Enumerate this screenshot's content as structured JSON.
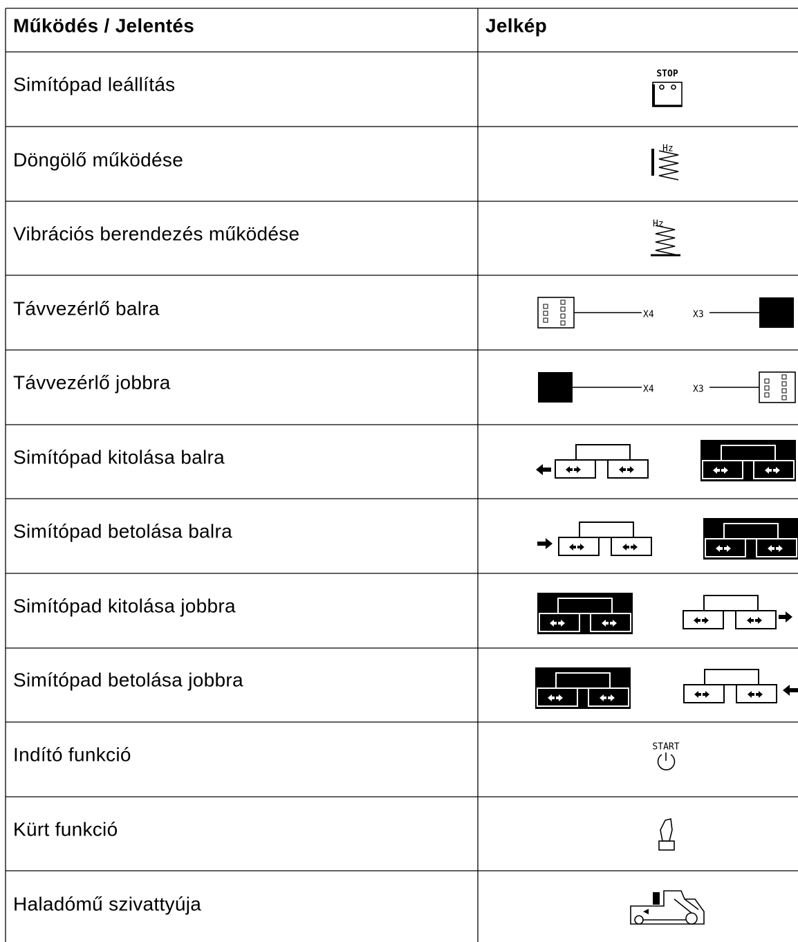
{
  "table": {
    "header": [
      "Működés / Jelentés",
      "Jelkép"
    ],
    "rows": [
      [
        "Simítópad leállítás"
      ],
      [
        "Döngölő működése"
      ],
      [
        "Vibrációs berendezés működése"
      ],
      [
        "Távvezérlő balra"
      ],
      [
        "Távvezérlő jobbra"
      ],
      [
        "Simítópad kitolása balra"
      ],
      [
        "Simítópad betolása balra"
      ],
      [
        "Simítópad kitolása jobbra"
      ],
      [
        "Simítópad betolása jobbra"
      ],
      [
        "Indító funkció"
      ],
      [
        "Kürt funkció"
      ],
      [
        "Haladómű szivattyúja"
      ]
    ]
  },
  "symbol_labels": {
    "stop": "STOP",
    "hz": "Hz",
    "x4": "X4",
    "x3": "X3",
    "start": "START"
  }
}
